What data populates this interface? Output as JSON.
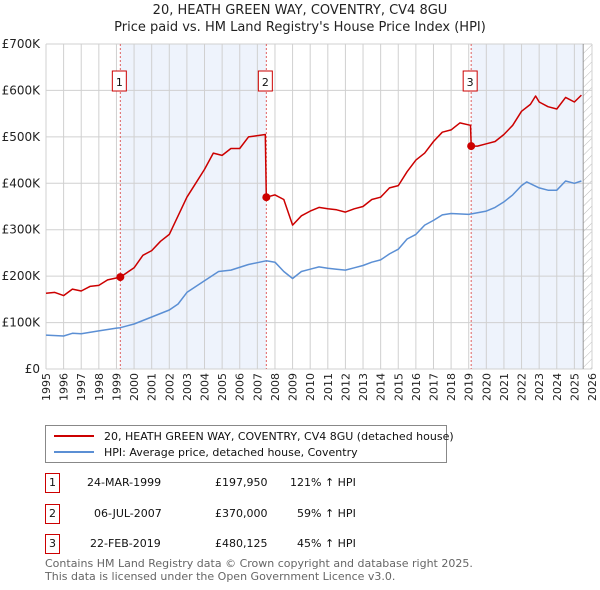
{
  "title": "20, HEATH GREEN WAY, COVENTRY, CV4 8GU",
  "subtitle": "Price paid vs. HM Land Registry's House Price Index (HPI)",
  "chart_data": {
    "type": "line",
    "title": "20, HEATH GREEN WAY, COVENTRY, CV4 8GU",
    "subtitle": "Price paid vs. HM Land Registry's House Price Index (HPI)",
    "xlim": [
      1995,
      2026
    ],
    "ylim": [
      0,
      700000
    ],
    "y_ticks": [
      0,
      100000,
      200000,
      300000,
      400000,
      500000,
      600000,
      700000
    ],
    "y_tick_labels": [
      "£0",
      "£100K",
      "£200K",
      "£300K",
      "£400K",
      "£500K",
      "£600K",
      "£700K"
    ],
    "x_tick_labels": [
      "1995",
      "1996",
      "1997",
      "1998",
      "1999",
      "2000",
      "2001",
      "2002",
      "2003",
      "2004",
      "2005",
      "2006",
      "2007",
      "2008",
      "2009",
      "2010",
      "2011",
      "2012",
      "2013",
      "2014",
      "2015",
      "2016",
      "2017",
      "2018",
      "2019",
      "2020",
      "2021",
      "2022",
      "2023",
      "2024",
      "2025",
      "2026"
    ],
    "grid": true,
    "series": [
      {
        "name": "20, HEATH GREEN WAY, COVENTRY, CV4 8GU (detached house)",
        "color": "#cc0000",
        "x": [
          1995,
          1995.5,
          1996,
          1996.5,
          1997,
          1997.5,
          1998,
          1998.5,
          1999.22,
          2000,
          2000.5,
          2001,
          2001.5,
          2002,
          2002.5,
          2003,
          2003.5,
          2004,
          2004.5,
          2005,
          2005.5,
          2006,
          2006.5,
          2007.45,
          2007.51,
          2008,
          2008.5,
          2009,
          2009.5,
          2010,
          2010.5,
          2011,
          2011.5,
          2012,
          2012.5,
          2013,
          2013.5,
          2014,
          2014.5,
          2015,
          2015.5,
          2016,
          2016.5,
          2017,
          2017.5,
          2018,
          2018.5,
          2019.1,
          2019.14,
          2019.5,
          2020,
          2020.5,
          2021,
          2021.5,
          2022,
          2022.5,
          2022.8,
          2023,
          2023.5,
          2024,
          2024.5,
          2025,
          2025.4
        ],
        "y": [
          163000,
          165000,
          158000,
          172000,
          168000,
          178000,
          180000,
          192000,
          197950,
          218000,
          245000,
          255000,
          275000,
          290000,
          330000,
          370000,
          400000,
          430000,
          465000,
          460000,
          475000,
          475000,
          500000,
          505000,
          370000,
          375000,
          365000,
          310000,
          330000,
          340000,
          348000,
          345000,
          343000,
          338000,
          345000,
          350000,
          365000,
          370000,
          390000,
          395000,
          425000,
          450000,
          465000,
          490000,
          510000,
          515000,
          530000,
          525000,
          480125,
          480000,
          485000,
          490000,
          505000,
          525000,
          555000,
          570000,
          588000,
          575000,
          565000,
          560000,
          585000,
          575000,
          590000
        ]
      },
      {
        "name": "HPI: Average price, detached house, Coventry",
        "color": "#5b8fd4",
        "x": [
          1995,
          1996,
          1996.5,
          1997,
          1998,
          1999,
          1999.22,
          2000,
          2001,
          2002,
          2002.5,
          2003,
          2004,
          2004.8,
          2005.5,
          2006.5,
          2007.5,
          2008,
          2008.5,
          2009,
          2009.5,
          2010,
          2010.5,
          2011,
          2011.5,
          2012,
          2012.5,
          2013,
          2013.5,
          2014,
          2014.5,
          2015,
          2015.5,
          2016,
          2016.5,
          2017,
          2017.5,
          2018,
          2019,
          2020,
          2020.5,
          2021,
          2021.5,
          2022,
          2022.3,
          2023,
          2023.5,
          2024,
          2024.5,
          2025,
          2025.4
        ],
        "y": [
          73000,
          71000,
          77000,
          76000,
          82000,
          88000,
          89000,
          97000,
          112000,
          127000,
          140000,
          165000,
          190000,
          210000,
          213000,
          225000,
          233000,
          230000,
          210000,
          195000,
          210000,
          215000,
          220000,
          217000,
          215000,
          213000,
          218000,
          223000,
          230000,
          235000,
          248000,
          258000,
          280000,
          290000,
          310000,
          320000,
          332000,
          335000,
          333000,
          340000,
          348000,
          360000,
          375000,
          395000,
          403000,
          390000,
          385000,
          385000,
          405000,
          400000,
          405000
        ]
      }
    ],
    "sales": [
      {
        "label": "1",
        "x": 1999.22,
        "y": 197950,
        "date": "24-MAR-1999",
        "price": "£197,950",
        "hpi": "121% ↑ HPI"
      },
      {
        "label": "2",
        "x": 2007.51,
        "y": 370000,
        "date": "06-JUL-2007",
        "price": "£370,000",
        "hpi": "59% ↑ HPI"
      },
      {
        "label": "3",
        "x": 2019.14,
        "y": 480125,
        "date": "22-FEB-2019",
        "price": "£480,125",
        "hpi": "45% ↑ HPI"
      }
    ],
    "shaded_ranges": [
      [
        1999.22,
        2007.51
      ],
      [
        2019.14,
        2026
      ]
    ],
    "forecast_hatch_from": 2025.5
  },
  "legend": {
    "red_label": "20, HEATH GREEN WAY, COVENTRY, CV4 8GU (detached house)",
    "blue_label": "HPI: Average price, detached house, Coventry"
  },
  "footer": {
    "line1": "Contains HM Land Registry data © Crown copyright and database right 2025.",
    "line2": "This data is licensed under the Open Government Licence v3.0."
  }
}
